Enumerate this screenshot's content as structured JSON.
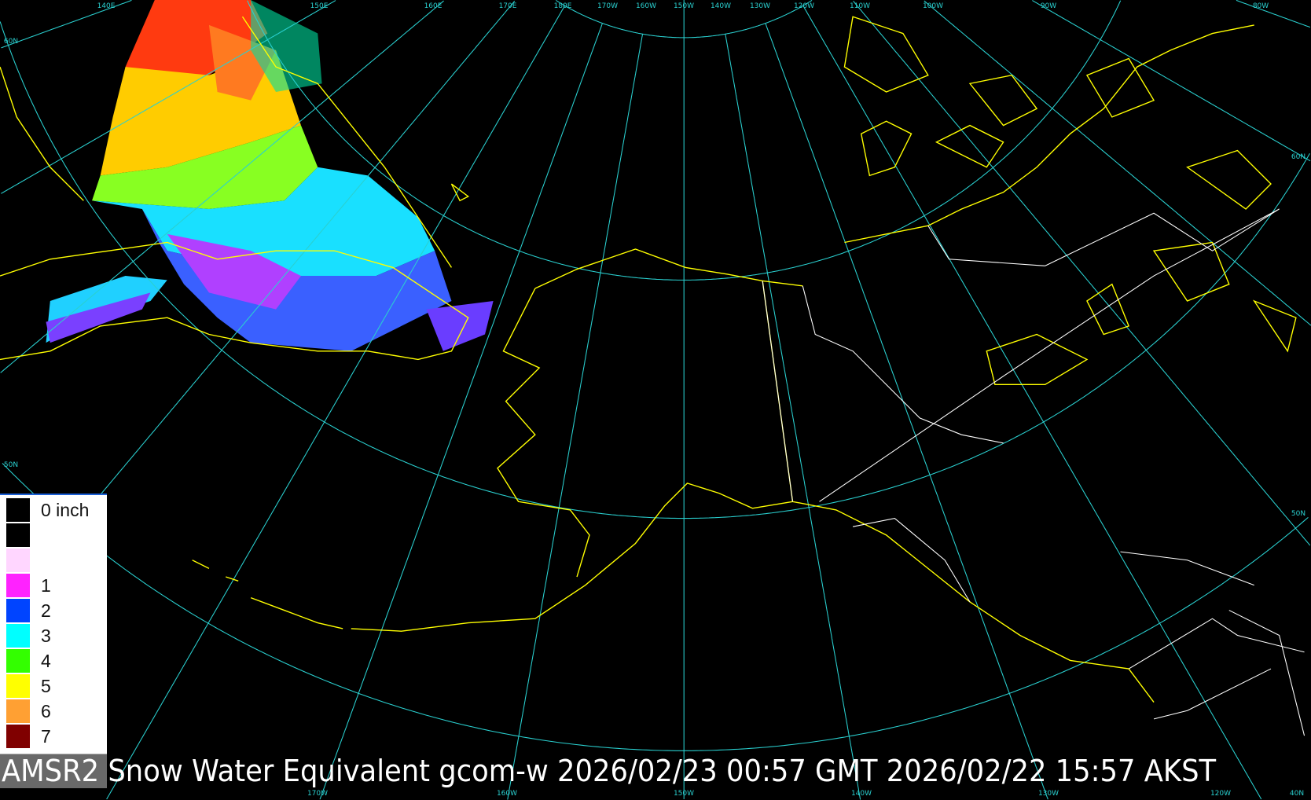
{
  "title": "AMSR2 Snow Water Equivalent gcom-w 2026/02/23 00:57 GMT 2026/02/22 15:57 AKST",
  "colors": {
    "background": "#000000",
    "graticule": "#2ad0d0",
    "coastline": "#ffff00",
    "borders": "#ffffff"
  },
  "legend": {
    "items": [
      {
        "label": "0 inch",
        "color": "#000000"
      },
      {
        "label": "",
        "color": "#000000"
      },
      {
        "label": "",
        "color": "#ffd6ff"
      },
      {
        "label": "1",
        "color": "#ff22ff"
      },
      {
        "label": "2",
        "color": "#0044ff"
      },
      {
        "label": "3",
        "color": "#00ffff"
      },
      {
        "label": "4",
        "color": "#33ff00"
      },
      {
        "label": "5",
        "color": "#ffff00"
      },
      {
        "label": "6",
        "color": "#ffa033"
      },
      {
        "label": "7",
        "color": "#800000"
      }
    ]
  },
  "graticule": {
    "top_labels": [
      "140E",
      "150E",
      "160E",
      "170E",
      "180E",
      "170W",
      "160W",
      "150W",
      "140W",
      "130W",
      "120W",
      "110W",
      "100W",
      "90W",
      "80W"
    ],
    "bottom_labels": [
      "170W",
      "160W",
      "150W",
      "140W",
      "130W",
      "120W",
      "40N"
    ],
    "left_labels": [
      "60N",
      "50N"
    ],
    "right_labels": [
      "60N",
      "50N"
    ]
  }
}
